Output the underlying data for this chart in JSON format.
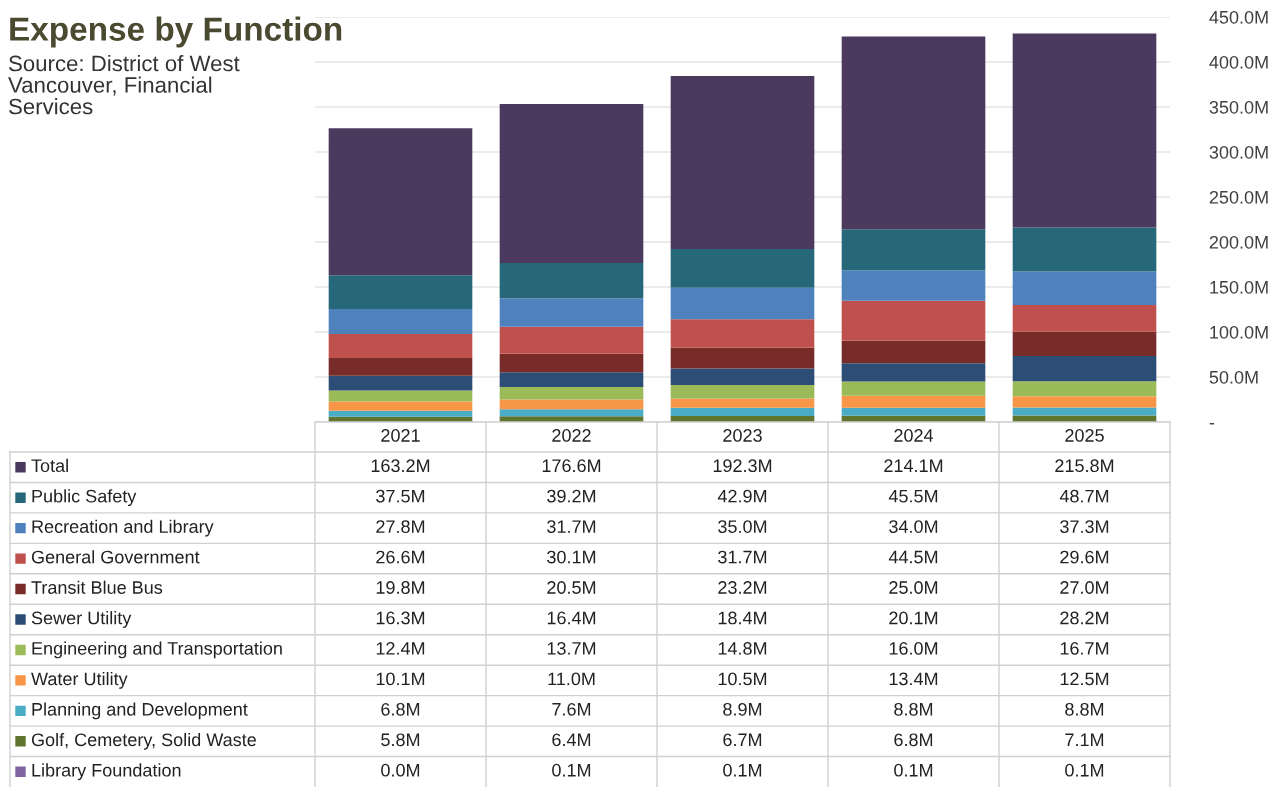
{
  "chart_data": {
    "type": "bar",
    "stacked": true,
    "grid": "y",
    "legend": "bottom left",
    "title": "Expense by Function",
    "subtitle": "Source: District of West\nVancouver, Financial\nServices",
    "categories": [
      "2021",
      "2022",
      "2023",
      "2024",
      "2025"
    ],
    "ylim": [
      0,
      450
    ],
    "yticks": [
      {
        "value": 0,
        "label": "-"
      },
      {
        "value": 50,
        "label": "50.0M"
      },
      {
        "value": 100,
        "label": "100.0M"
      },
      {
        "value": 150,
        "label": "150.0M"
      },
      {
        "value": 200,
        "label": "200.0M"
      },
      {
        "value": 250,
        "label": "250.0M"
      },
      {
        "value": 300,
        "label": "300.0M"
      },
      {
        "value": 350,
        "label": "350.0M"
      },
      {
        "value": 400,
        "label": "400.0M"
      },
      {
        "value": 450,
        "label": "450.0M"
      }
    ],
    "series": [
      {
        "name": "Library Foundation",
        "color": "#8064a2",
        "values": [
          0.0,
          0.1,
          0.1,
          0.1,
          0.1
        ],
        "value_labels": [
          "0.0M",
          "0.1M",
          "0.1M",
          "0.1M",
          "0.1M"
        ]
      },
      {
        "name": "Golf, Cemetery, Solid Waste",
        "color": "#5f7530",
        "values": [
          5.8,
          6.4,
          6.7,
          6.8,
          7.1
        ],
        "value_labels": [
          "5.8M",
          "6.4M",
          "6.7M",
          "6.8M",
          "7.1M"
        ]
      },
      {
        "name": "Planning and Development",
        "color": "#4bacc6",
        "values": [
          6.8,
          7.6,
          8.9,
          8.8,
          8.8
        ],
        "value_labels": [
          "6.8M",
          "7.6M",
          "8.9M",
          "8.8M",
          "8.8M"
        ]
      },
      {
        "name": "Water Utility",
        "color": "#f79646",
        "values": [
          10.1,
          11.0,
          10.5,
          13.4,
          12.5
        ],
        "value_labels": [
          "10.1M",
          "11.0M",
          "10.5M",
          "13.4M",
          "12.5M"
        ]
      },
      {
        "name": "Engineering and Transportation",
        "color": "#9bbb59",
        "values": [
          12.4,
          13.7,
          14.8,
          16.0,
          16.7
        ],
        "value_labels": [
          "12.4M",
          "13.7M",
          "14.8M",
          "16.0M",
          "16.7M"
        ]
      },
      {
        "name": "Sewer Utility",
        "color": "#2c4d75",
        "values": [
          16.3,
          16.4,
          18.4,
          20.1,
          28.2
        ],
        "value_labels": [
          "16.3M",
          "16.4M",
          "18.4M",
          "20.1M",
          "28.2M"
        ]
      },
      {
        "name": "Transit Blue Bus",
        "color": "#772c2a",
        "values": [
          19.8,
          20.5,
          23.2,
          25.0,
          27.0
        ],
        "value_labels": [
          "19.8M",
          "20.5M",
          "23.2M",
          "25.0M",
          "27.0M"
        ]
      },
      {
        "name": "General Government",
        "color": "#c0504d",
        "values": [
          26.6,
          30.1,
          31.7,
          44.5,
          29.6
        ],
        "value_labels": [
          "26.6M",
          "30.1M",
          "31.7M",
          "44.5M",
          "29.6M"
        ]
      },
      {
        "name": "Recreation and Library",
        "color": "#4f81bd",
        "values": [
          27.8,
          31.7,
          35.0,
          34.0,
          37.3
        ],
        "value_labels": [
          "27.8M",
          "31.7M",
          "35.0M",
          "34.0M",
          "37.3M"
        ]
      },
      {
        "name": "Public Safety",
        "color": "#26687a",
        "values": [
          37.5,
          39.2,
          42.9,
          45.5,
          48.7
        ],
        "value_labels": [
          "37.5M",
          "39.2M",
          "42.9M",
          "45.5M",
          "48.7M"
        ]
      },
      {
        "name": "Total",
        "color": "#4b3a5e",
        "values": [
          163.2,
          176.6,
          192.3,
          214.1,
          215.8
        ],
        "value_labels": [
          "163.2M",
          "176.6M",
          "192.3M",
          "214.1M",
          "215.8M"
        ]
      }
    ]
  }
}
